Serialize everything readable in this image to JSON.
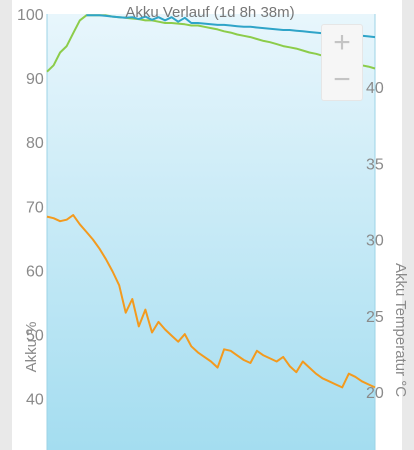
{
  "chart_data": {
    "type": "line",
    "title": "Akku Verlauf (1d 8h 38m)",
    "ylabel_left": "Akku %",
    "ylabel_right": "Akku Temperatur °C",
    "y_left": {
      "ticks": [
        "100",
        "90",
        "80",
        "70",
        "60",
        "50",
        "40"
      ],
      "range": [
        32,
        100
      ]
    },
    "y_right": {
      "ticks": [
        "40",
        "35",
        "30",
        "25",
        "20"
      ],
      "range": [
        17.5,
        43
      ]
    },
    "x": [
      0,
      2,
      4,
      6,
      8,
      10,
      12,
      14,
      16,
      18,
      20,
      22,
      24,
      26,
      28,
      30,
      32,
      34,
      36,
      38,
      40,
      42,
      44,
      46,
      48,
      50,
      52,
      54,
      56,
      58,
      60,
      62,
      64,
      66,
      68,
      70,
      72,
      74,
      76,
      78,
      80,
      82,
      84,
      86,
      88,
      90,
      92,
      94,
      96,
      98,
      100
    ],
    "series": [
      {
        "kind": "battery_charging",
        "color": "#8ccc4a",
        "values": [
          91,
          92,
          94,
          95,
          97,
          99,
          99.8,
          99.8,
          99.8,
          99.8,
          99.6,
          99.5,
          99.4,
          99.3,
          99.2,
          99.0,
          99.0,
          98.8,
          98.6,
          98.6,
          98.5,
          98.4,
          98.2,
          98.2,
          98.0,
          97.8,
          97.6,
          97.3,
          97.1,
          96.8,
          96.6,
          96.4,
          96.1,
          95.8,
          95.6,
          95.3,
          95.0,
          94.8,
          94.6,
          94.3,
          94.0,
          93.8,
          93.5,
          93.3,
          93.0,
          92.8,
          92.5,
          92.2,
          92.0,
          91.8,
          91.5
        ]
      },
      {
        "kind": "battery_discharging",
        "color": "#2fa4c8",
        "values": [
          null,
          null,
          null,
          null,
          null,
          null,
          99.8,
          99.8,
          99.8,
          99.7,
          99.6,
          99.5,
          99.4,
          99.5,
          99.2,
          99.6,
          99.1,
          99.5,
          99.0,
          99.5,
          98.8,
          99.4,
          98.6,
          98.6,
          98.5,
          98.4,
          98.3,
          98.3,
          98.2,
          98.1,
          98.0,
          98.0,
          97.9,
          97.8,
          97.7,
          97.6,
          97.5,
          97.5,
          97.4,
          97.3,
          97.2,
          97.1,
          97.0,
          97.0,
          96.9,
          96.8,
          96.7,
          96.7,
          96.6,
          96.5,
          96.4
        ]
      },
      {
        "kind": "temperature",
        "color": "#f39a1e",
        "values": [
          31.5,
          31.4,
          31.2,
          31.3,
          31.6,
          31.0,
          30.5,
          30.0,
          29.4,
          28.7,
          27.9,
          27.0,
          25.2,
          26.1,
          24.3,
          25.4,
          23.9,
          24.6,
          24.1,
          23.7,
          23.3,
          23.8,
          23.0,
          22.6,
          22.3,
          22.0,
          21.6,
          22.8,
          22.7,
          22.4,
          22.1,
          21.9,
          22.7,
          22.4,
          22.2,
          22.0,
          22.3,
          21.7,
          21.3,
          22.0,
          21.6,
          21.2,
          20.9,
          20.7,
          20.5,
          20.3,
          21.2,
          21.0,
          20.7,
          20.5,
          20.3
        ]
      }
    ],
    "background_gradient": [
      "#e8f6fc",
      "#a4ddf0"
    ],
    "grid": false
  },
  "controls": {
    "zoom_in": "+",
    "zoom_out": "−"
  }
}
